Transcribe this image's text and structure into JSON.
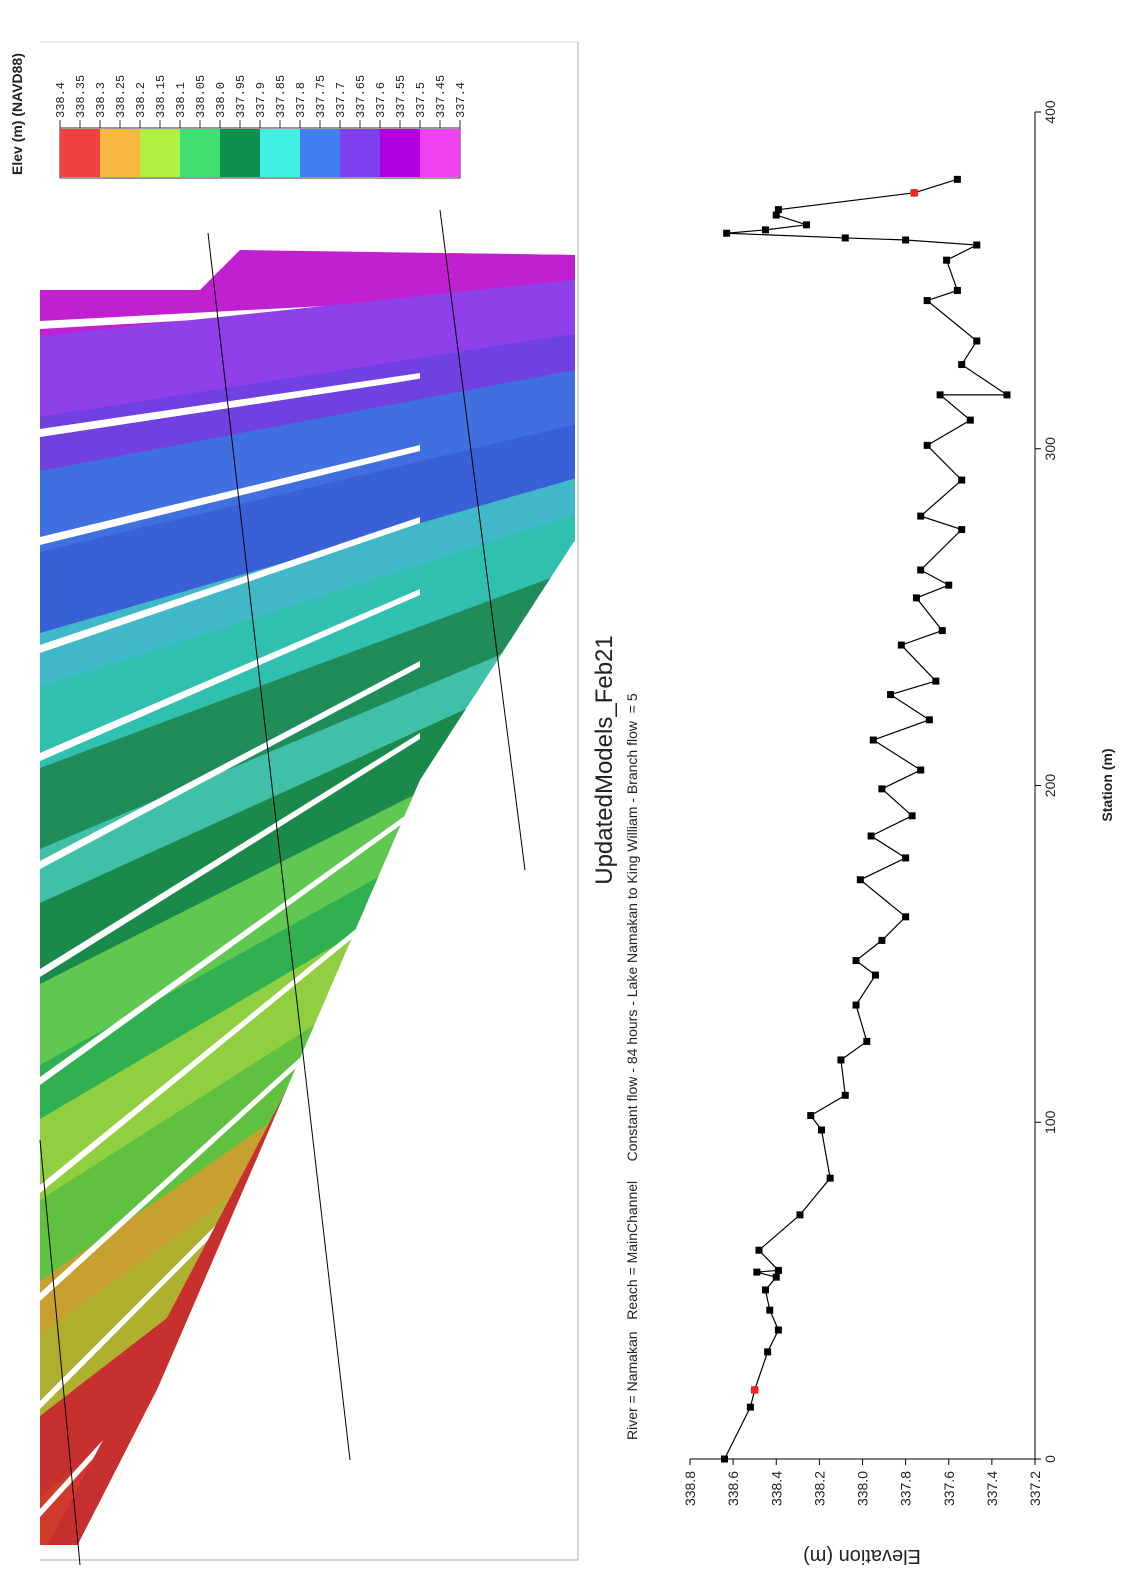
{
  "chart_data": {
    "type": "line",
    "title": "UpdatedModels_Feb21",
    "subtitle": "River = Namakan   Reach = MainChannel     Constant flow - 84 hours - Lake Namakan to King William - Branch flow  = 5",
    "x_label": "Station (m)",
    "y_label": "Elevation (m)",
    "xlim": [
      0,
      400
    ],
    "xticks": [
      0,
      100,
      200,
      300,
      400
    ],
    "ylim": [
      337.2,
      338.8
    ],
    "yticks": [
      337.2,
      337.4,
      337.6,
      337.8,
      {
        "value": 338,
        "label": "338.0"
      },
      338.2,
      338.4,
      338.6,
      338.8
    ],
    "series": [
      {
        "color": "#000000",
        "x": [
          0,
          15.4,
          20.5,
          31.8,
          38.3,
          44.2,
          50.2,
          54,
          55.5,
          56,
          62,
          72.5,
          83.4,
          97.7,
          102,
          108,
          118.5,
          124,
          134.8,
          143.7,
          148,
          154,
          161,
          172,
          178.5,
          185,
          191,
          199,
          204.6,
          213.5,
          219.5,
          227,
          231,
          241.7,
          246,
          255.7,
          259.5,
          264,
          276,
          280,
          290.7,
          301,
          308.5,
          316,
          316,
          325,
          332,
          344,
          347,
          356,
          360.5,
          362,
          362.6,
          364,
          365,
          366.5,
          369.4,
          371,
          376,
          380
        ],
        "values": [
          338.64,
          338.52,
          338.5,
          338.44,
          338.39,
          338.43,
          338.45,
          338.4,
          338.49,
          338.39,
          338.48,
          338.29,
          338.15,
          338.19,
          338.24,
          338.08,
          338.1,
          337.98,
          338.03,
          337.94,
          338.03,
          337.91,
          337.8,
          338.01,
          337.8,
          337.96,
          337.77,
          337.91,
          337.73,
          337.95,
          337.69,
          337.87,
          337.66,
          337.82,
          337.63,
          337.75,
          337.6,
          337.73,
          337.54,
          337.73,
          337.54,
          337.7,
          337.5,
          337.64,
          337.33,
          337.54,
          337.47,
          337.7,
          337.56,
          337.61,
          337.47,
          337.8,
          338.08,
          338.63,
          338.45,
          338.26,
          338.4,
          338.39,
          337.76,
          337.56
        ]
      }
    ],
    "markers": {
      "color": "#ff2020",
      "x": [
        20.5,
        376
      ],
      "values": [
        338.5,
        337.76
      ]
    }
  },
  "map_legend": {
    "title": "Elev (m) (NAVD88)",
    "labels": [
      "338.4",
      "338.35",
      "338.3",
      "338.25",
      "338.2",
      "338.15",
      "338.1",
      "338.05",
      "338.0",
      "337.95",
      "337.9",
      "337.85",
      "337.8",
      "337.75",
      "337.7",
      "337.65",
      "337.6",
      "337.55",
      "337.5",
      "337.45",
      "337.4"
    ],
    "colors": [
      "#f04040",
      "#f8b840",
      "#b0f040",
      "#40e070",
      "#109050",
      "#40f0e0",
      "#4080f0",
      "#8040f0",
      "#b000e0",
      "#f040f0"
    ]
  }
}
